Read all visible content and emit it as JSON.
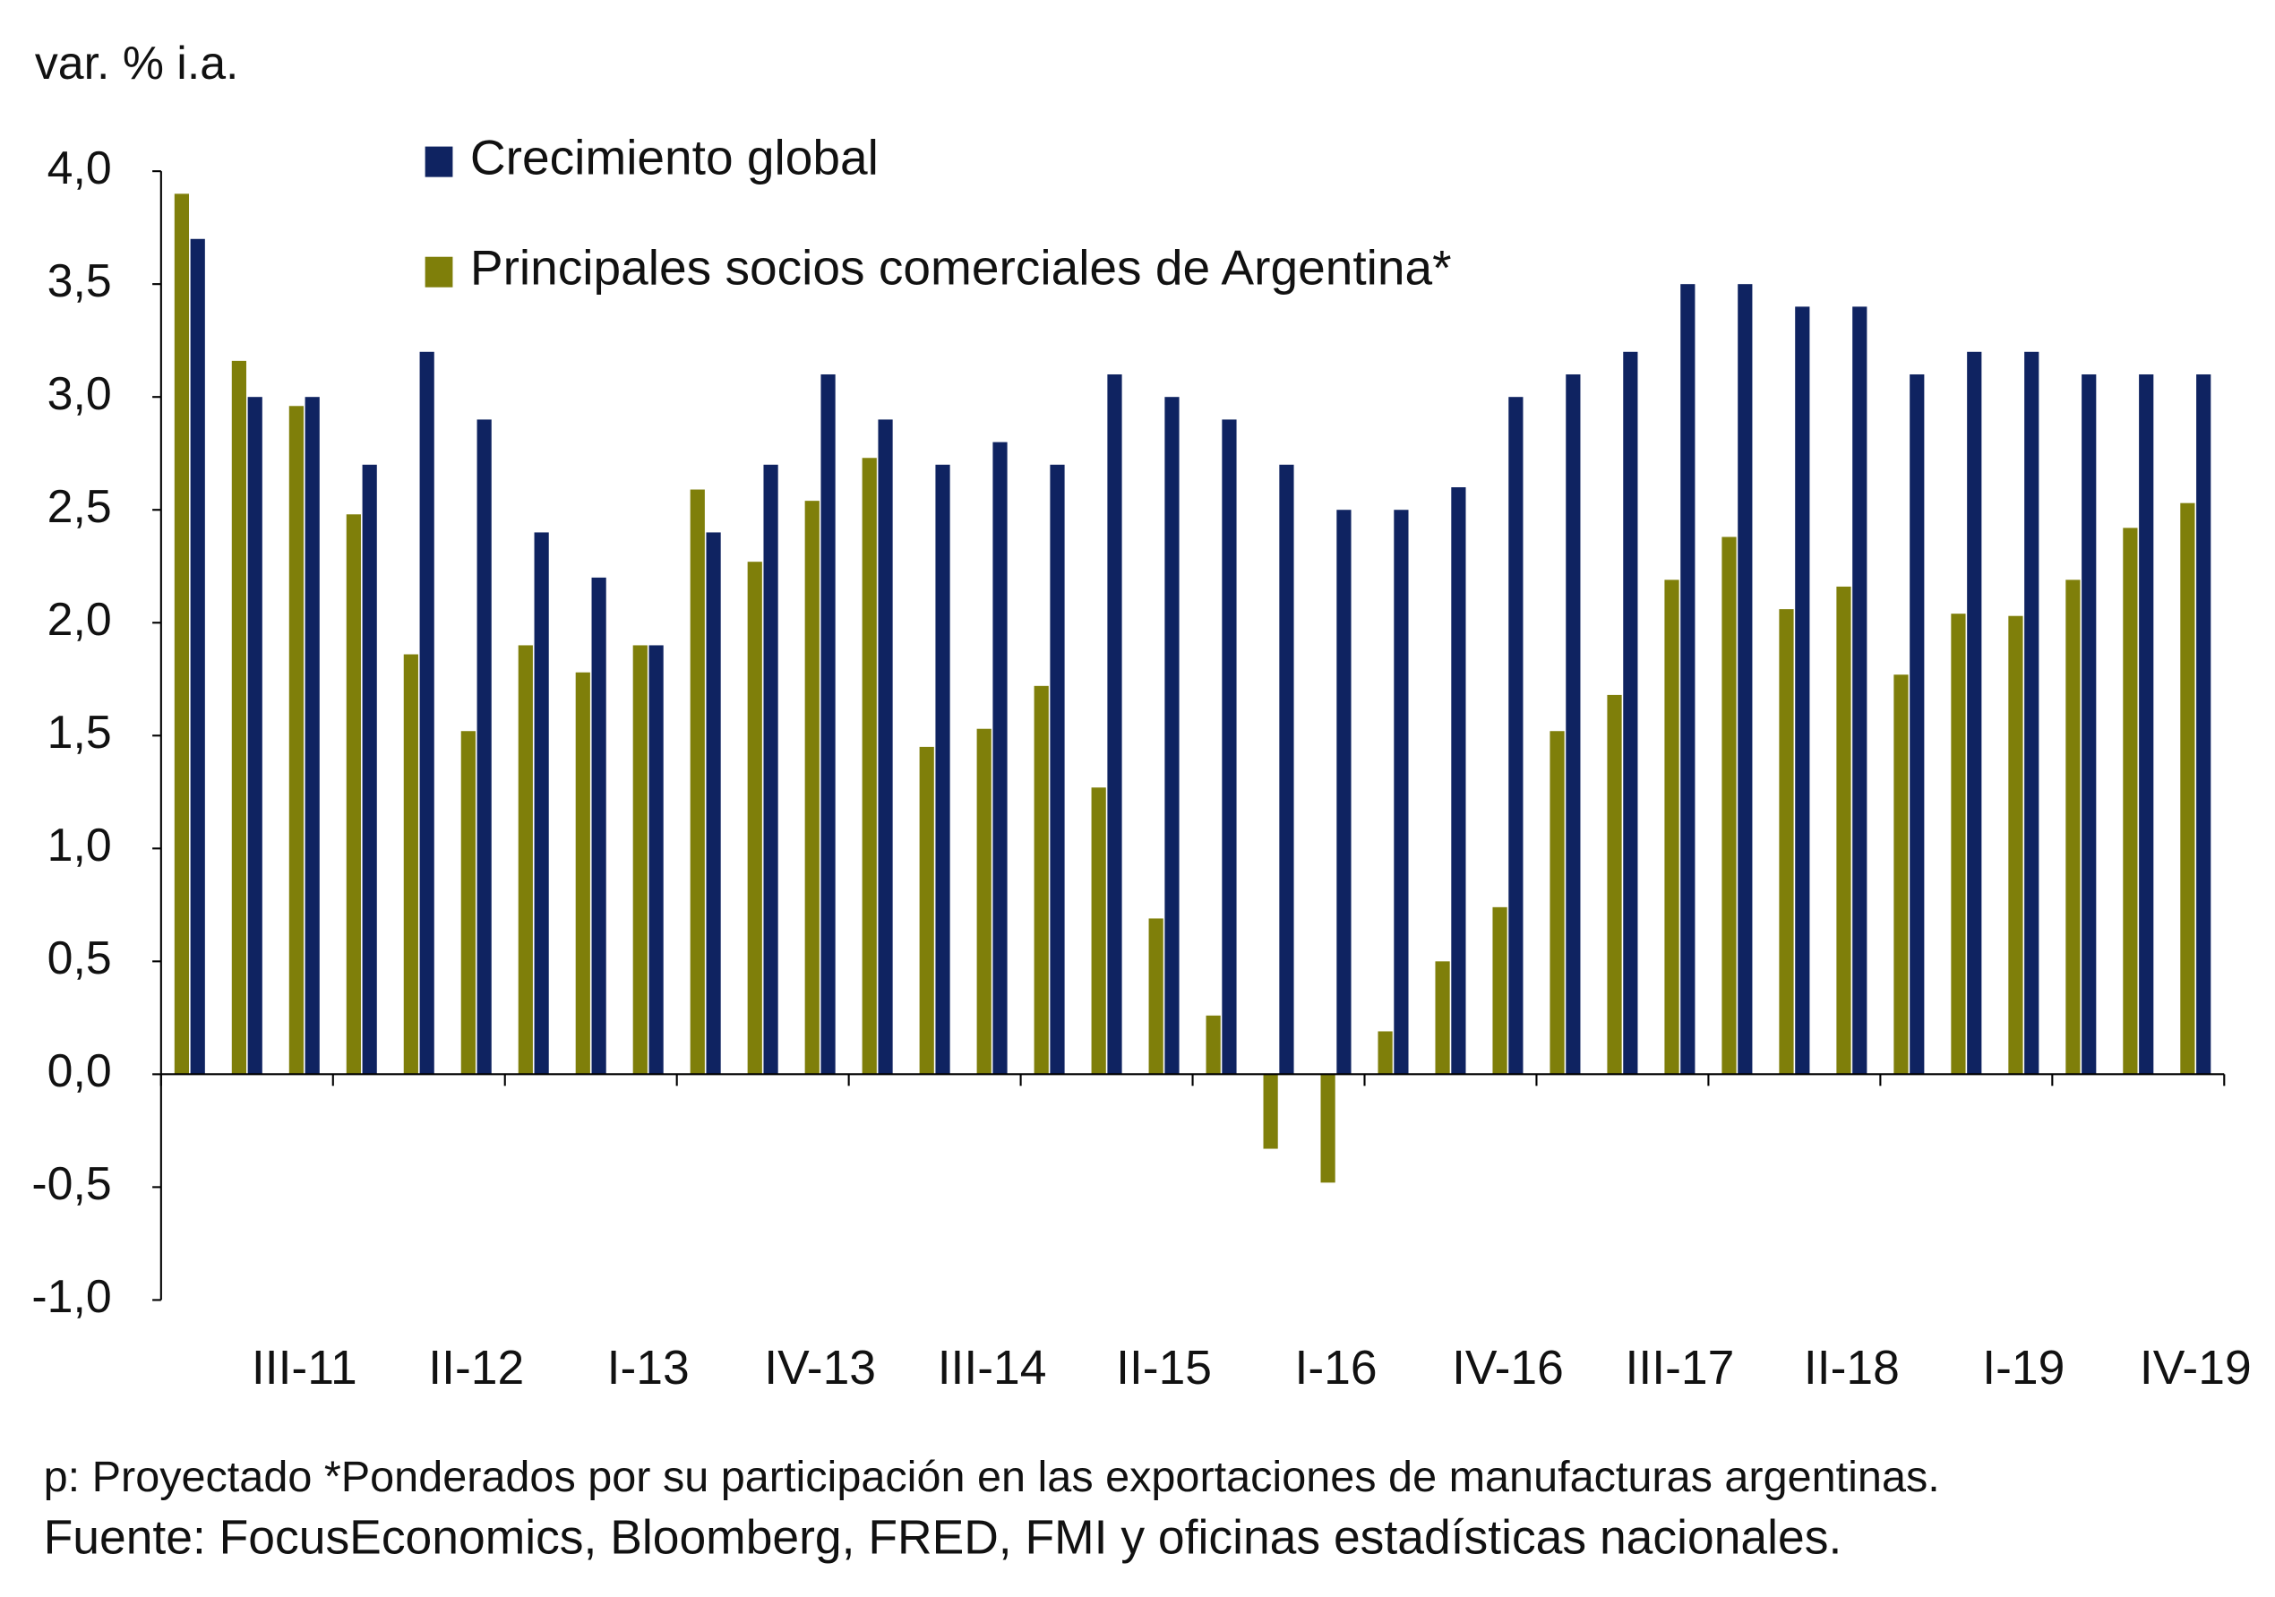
{
  "chart_data": {
    "type": "bar",
    "y_label": "var. % i.a.",
    "categories": [
      null,
      null,
      "III-11",
      null,
      null,
      "II-12",
      null,
      null,
      "I-13",
      null,
      null,
      "IV-13",
      null,
      null,
      "III-14",
      null,
      null,
      "II-15",
      null,
      null,
      "I-16",
      null,
      null,
      "IV-16",
      null,
      null,
      "III-17",
      null,
      null,
      "II-18",
      null,
      null,
      "I-19",
      null,
      null,
      "IV-19"
    ],
    "series": [
      {
        "name": "Principales socios comerciales de Argentina*",
        "color": "#7f7f0a",
        "values": [
          3.9,
          3.16,
          2.96,
          2.48,
          1.86,
          1.52,
          1.9,
          1.78,
          1.9,
          2.59,
          2.27,
          2.54,
          2.73,
          1.45,
          1.53,
          1.72,
          1.27,
          0.69,
          0.26,
          -0.33,
          -0.48,
          0.19,
          0.5,
          0.74,
          1.52,
          1.68,
          2.19,
          2.38,
          2.06,
          2.16,
          1.77,
          2.04,
          2.03,
          2.19,
          2.42,
          2.53
        ]
      },
      {
        "name": "Crecimiento global",
        "color": "#0f2361",
        "values": [
          3.7,
          3.0,
          3.0,
          2.7,
          3.2,
          2.9,
          2.4,
          2.2,
          1.9,
          2.4,
          2.7,
          3.1,
          2.9,
          2.7,
          2.8,
          2.7,
          3.1,
          3.0,
          2.9,
          2.7,
          2.5,
          2.5,
          2.6,
          3.0,
          3.1,
          3.2,
          3.5,
          3.5,
          3.4,
          3.4,
          3.1,
          3.2,
          3.2,
          3.1,
          3.1,
          3.1
        ]
      }
    ],
    "legend_order": [
      1,
      0
    ],
    "ylim": [
      -1.0,
      4.0
    ],
    "yticks": [
      {
        "value": -1.0,
        "label": "-1,0"
      },
      {
        "value": -0.5,
        "label": "-0,5"
      },
      {
        "value": 0,
        "label": "0,0"
      },
      {
        "value": 0.5,
        "label": "0,5"
      },
      {
        "value": 1.0,
        "label": "1,0"
      },
      {
        "value": 1.5,
        "label": "1,5"
      },
      {
        "value": 2.0,
        "label": "2,0"
      },
      {
        "value": 2.5,
        "label": "2,5"
      },
      {
        "value": 3.0,
        "label": "3,0"
      },
      {
        "value": 3.5,
        "label": "3,5"
      },
      {
        "value": 4.0,
        "label": "4,0"
      }
    ],
    "grid": false,
    "notes": [
      "p: Proyectado *Ponderados por su participación en las exportaciones de manufacturas argentinas.",
      "Fuente: FocusEconomics, Bloomberg, FRED, FMI y oficinas estadísticas nacionales."
    ]
  }
}
